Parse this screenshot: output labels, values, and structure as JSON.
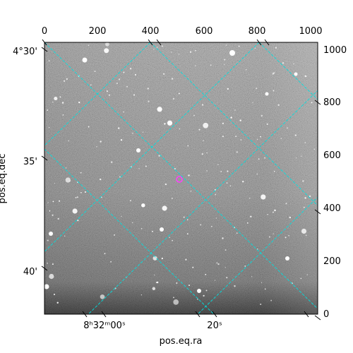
{
  "figure": {
    "xlabel": "pos.eq.ra",
    "ylabel": "pos.eq.dec",
    "pixel_x_ticks": [
      "0",
      "200",
      "400",
      "600",
      "800",
      "1000"
    ],
    "pixel_y_ticks": [
      "0",
      "200",
      "400",
      "600",
      "800",
      "1000"
    ],
    "ra_ticks": [
      "8ʰ32ᵐ00ˢ",
      "20ˢ"
    ],
    "dec_ticks": [
      "4°30'",
      "35'",
      "40'"
    ],
    "colors": {
      "grid": "#00e0e0",
      "marker": "#ff40ff",
      "frame": "#000000"
    }
  }
}
